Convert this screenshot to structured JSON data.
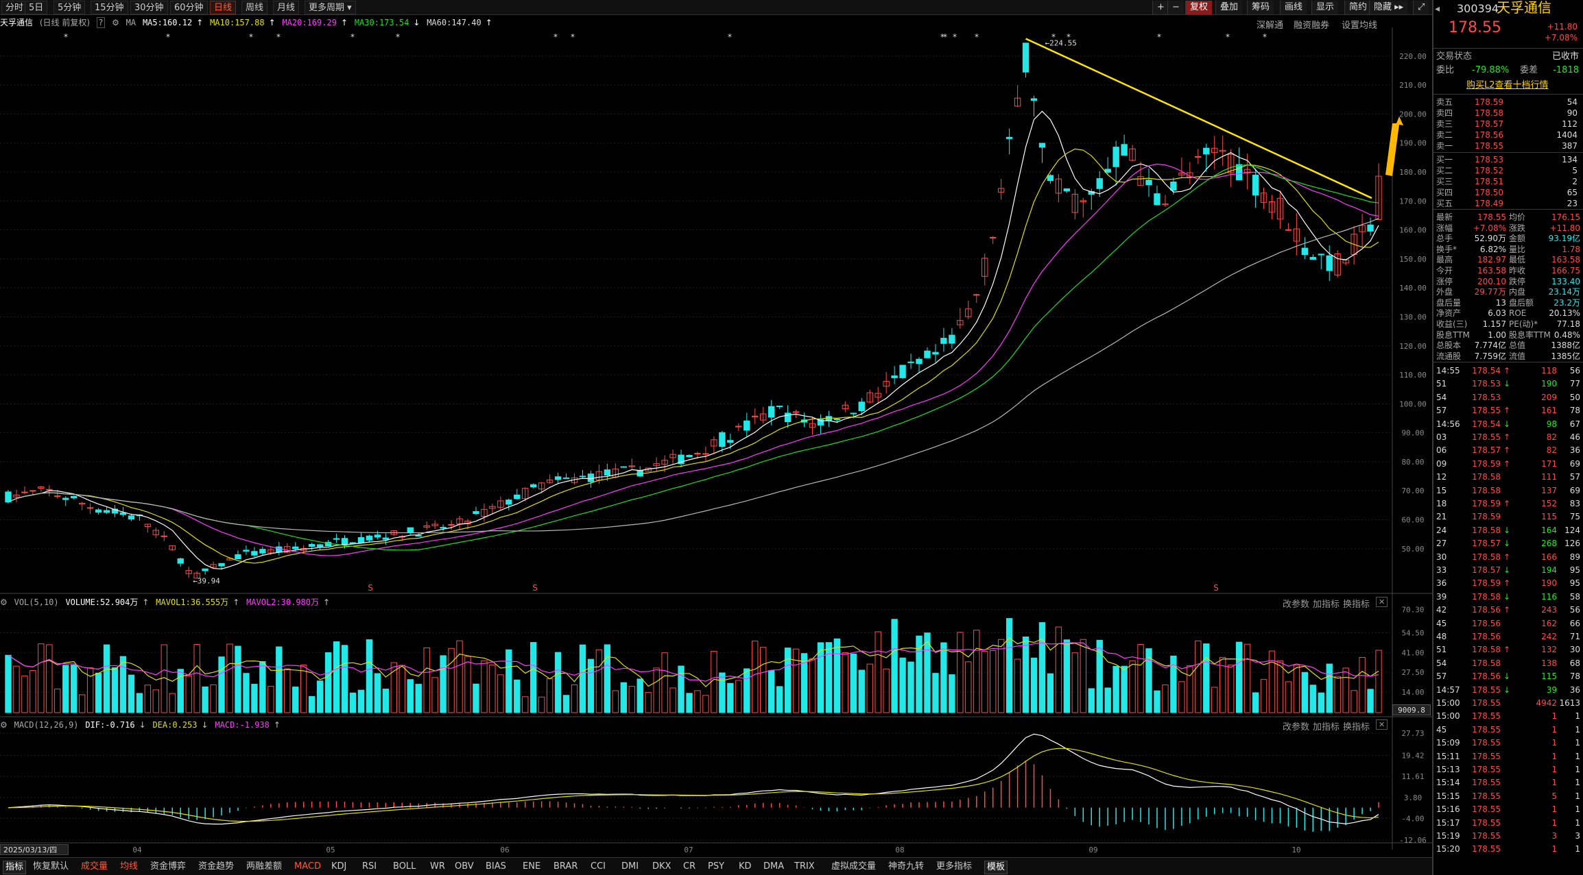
{
  "colors": {
    "up": "#ff4a4a",
    "down": "#22e8e8",
    "ma5": "#ffffff",
    "ma10": "#e0e000",
    "ma20": "#ff3bff",
    "ma30": "#22dd22",
    "ma60": "#b8b8b8",
    "trend": "#ffe600",
    "arrow": "#ffb800"
  },
  "toolbar": {
    "periods": [
      "分时",
      "5日",
      "5分钟",
      "15分钟",
      "30分钟",
      "60分钟",
      "日线",
      "周线",
      "月线",
      "更多周期"
    ],
    "active_period": "日线",
    "right_buttons": [
      "+",
      "−",
      "复权",
      "叠加",
      "筹码",
      "画线",
      "显示",
      "简约",
      "隐藏 ▸▸"
    ],
    "sub_links": [
      "深解通",
      "融资融券",
      "设置均线"
    ]
  },
  "stock": {
    "code": "300394",
    "name": "天孚通信",
    "price": "178.55",
    "change": "+11.80",
    "change_pct": "+7.08%"
  },
  "chart_info": {
    "title": "天孚通信",
    "subtitle": "(日线 前复权)",
    "ma_label": "MA",
    "ma5": "MA5:160.12",
    "ma10": "MA10:157.88",
    "ma20": "MA20:169.29",
    "ma30": "MA30:173.54",
    "ma60": "MA60:147.40"
  },
  "vol_info": {
    "label": "VOL(5,10)",
    "volume": "VOLUME:52.904万",
    "mavol1": "MAVOL1:36.555万",
    "mavol2": "MAVOL2:30.980万",
    "last": "9009.8"
  },
  "macd_info": {
    "label": "MACD(12,26,9)",
    "dif": "DIF:-0.716",
    "dea": "DEA:0.253",
    "macd": "MACD:-1.938"
  },
  "panel_links": [
    "改参数",
    "加指标",
    "换指标"
  ],
  "date_label": "2025/03/13/四",
  "annotations": {
    "high": "224.55",
    "low": "39.94"
  },
  "chart_data": {
    "type": "candlestick",
    "price_axis": {
      "ticks": [
        50,
        60,
        70,
        80,
        90,
        100,
        110,
        120,
        130,
        140,
        150,
        160,
        170,
        180,
        190,
        200,
        210,
        220
      ],
      "labels": [
        "50.00",
        "60.00",
        "70.00",
        "80.00",
        "90.00",
        "100.00",
        "110.00",
        "120.00",
        "130.00",
        "140.00",
        "150.00",
        "160.00",
        "170.00",
        "180.00",
        "190.00",
        "200.00",
        "210.00",
        "220.00"
      ]
    },
    "vol_axis": {
      "ticks": [
        14,
        27.5,
        41,
        54.5,
        70.3
      ],
      "labels": [
        "14.00",
        "27.50",
        "41.00",
        "54.50",
        "70.30"
      ]
    },
    "macd_axis": {
      "ticks": [
        -12.06,
        -4,
        3.8,
        11.61,
        19.42,
        27.73
      ],
      "labels": [
        "-12.06",
        "-4.00",
        "3.80",
        "11.61",
        "19.42",
        "27.73"
      ]
    },
    "months": [
      "04",
      "05",
      "06",
      "07",
      "08",
      "09",
      "10"
    ],
    "key_prices": {
      "start": 68,
      "low": 39.94,
      "high": 224.55,
      "last": 178.55
    }
  },
  "quote": {
    "status_label": "交易状态",
    "status": "已收市",
    "wb_label": "委比",
    "wb": "-79.88%",
    "wc_label": "委差",
    "wc": "-1818",
    "l2": "购买L2查看十档行情",
    "asks": [
      {
        "l": "卖五",
        "p": "178.59",
        "v": "54"
      },
      {
        "l": "卖四",
        "p": "178.58",
        "v": "90"
      },
      {
        "l": "卖三",
        "p": "178.57",
        "v": "112"
      },
      {
        "l": "卖二",
        "p": "178.56",
        "v": "1404"
      },
      {
        "l": "卖一",
        "p": "178.55",
        "v": "387"
      }
    ],
    "bids": [
      {
        "l": "买一",
        "p": "178.53",
        "v": "134"
      },
      {
        "l": "买二",
        "p": "178.52",
        "v": "5"
      },
      {
        "l": "买三",
        "p": "178.51",
        "v": "2"
      },
      {
        "l": "买四",
        "p": "178.50",
        "v": "65"
      },
      {
        "l": "买五",
        "p": "178.49",
        "v": "23"
      }
    ],
    "stats": [
      {
        "a": "最新",
        "av": "178.55",
        "b": "均价",
        "bv": "176.15"
      },
      {
        "a": "涨幅",
        "av": "+7.08%",
        "b": "涨跌",
        "bv": "+11.80"
      },
      {
        "a": "总手",
        "av": "52.90万",
        "b": "金额",
        "bv": "93.19亿"
      },
      {
        "a": "换手*",
        "av": "6.82%",
        "b": "量比",
        "bv": "1.78"
      },
      {
        "a": "最高",
        "av": "182.97",
        "b": "最低",
        "bv": "163.58"
      },
      {
        "a": "今开",
        "av": "163.58",
        "b": "昨收",
        "bv": "166.75"
      },
      {
        "a": "涨停",
        "av": "200.10",
        "b": "跌停",
        "bv": "133.40"
      },
      {
        "a": "外盘",
        "av": "29.77万",
        "b": "内盘",
        "bv": "23.14万"
      },
      {
        "a": "盘后量",
        "av": "13",
        "b": "盘后额",
        "bv": "23.2万"
      },
      {
        "a": "净资产",
        "av": "6.03",
        "b": "ROE",
        "bv": "20.13%"
      },
      {
        "a": "收益(三)",
        "av": "1.157",
        "b": "PE(动)*",
        "bv": "77.18"
      },
      {
        "a": "股息TTM",
        "av": "1.00",
        "b": "股息率TTM",
        "bv": "0.48%"
      },
      {
        "a": "总股本",
        "av": "7.774亿",
        "b": "总值",
        "bv": "1388亿"
      },
      {
        "a": "流通股",
        "av": "7.759亿",
        "b": "流值",
        "bv": "1385亿"
      }
    ],
    "ticks": [
      {
        "t": "14:55",
        "p": "178.54",
        "d": "up",
        "v": "118",
        "n": "56"
      },
      {
        "t": "51",
        "p": "178.53",
        "d": "down",
        "v": "190",
        "n": "77"
      },
      {
        "t": "54",
        "p": "178.53",
        "d": "",
        "v": "209",
        "n": "50"
      },
      {
        "t": "57",
        "p": "178.55",
        "d": "up",
        "v": "161",
        "n": "78"
      },
      {
        "t": "14:56",
        "p": "178.54",
        "d": "down",
        "v": "98",
        "n": "67"
      },
      {
        "t": "03",
        "p": "178.55",
        "d": "up",
        "v": "82",
        "n": "46"
      },
      {
        "t": "06",
        "p": "178.57",
        "d": "up",
        "v": "82",
        "n": "36"
      },
      {
        "t": "09",
        "p": "178.59",
        "d": "up",
        "v": "171",
        "n": "69"
      },
      {
        "t": "12",
        "p": "178.58",
        "d": "",
        "v": "111",
        "n": "57"
      },
      {
        "t": "15",
        "p": "178.58",
        "d": "",
        "v": "137",
        "n": "69"
      },
      {
        "t": "18",
        "p": "178.59",
        "d": "up",
        "v": "152",
        "n": "83"
      },
      {
        "t": "21",
        "p": "178.59",
        "d": "",
        "v": "115",
        "n": "75"
      },
      {
        "t": "24",
        "p": "178.58",
        "d": "down",
        "v": "164",
        "n": "124"
      },
      {
        "t": "27",
        "p": "178.57",
        "d": "down",
        "v": "268",
        "n": "126"
      },
      {
        "t": "30",
        "p": "178.58",
        "d": "up",
        "v": "166",
        "n": "89"
      },
      {
        "t": "33",
        "p": "178.57",
        "d": "down",
        "v": "194",
        "n": "95"
      },
      {
        "t": "36",
        "p": "178.59",
        "d": "up",
        "v": "190",
        "n": "95"
      },
      {
        "t": "39",
        "p": "178.58",
        "d": "down",
        "v": "116",
        "n": "58"
      },
      {
        "t": "42",
        "p": "178.56",
        "d": "up",
        "v": "243",
        "n": "56"
      },
      {
        "t": "45",
        "p": "178.56",
        "d": "",
        "v": "162",
        "n": "66"
      },
      {
        "t": "48",
        "p": "178.56",
        "d": "",
        "v": "242",
        "n": "71"
      },
      {
        "t": "51",
        "p": "178.58",
        "d": "up",
        "v": "132",
        "n": "30"
      },
      {
        "t": "54",
        "p": "178.58",
        "d": "",
        "v": "138",
        "n": "68"
      },
      {
        "t": "57",
        "p": "178.56",
        "d": "down",
        "v": "115",
        "n": "78"
      },
      {
        "t": "14:57",
        "p": "178.55",
        "d": "down",
        "v": "39",
        "n": "36"
      },
      {
        "t": "15:00",
        "p": "178.55",
        "d": "",
        "v": "4942",
        "n": "1613"
      },
      {
        "t": "15:00",
        "p": "178.55",
        "d": "",
        "v": "1",
        "n": "1"
      },
      {
        "t": "45",
        "p": "178.55",
        "d": "",
        "v": "1",
        "n": "1"
      },
      {
        "t": "15:09",
        "p": "178.55",
        "d": "",
        "v": "1",
        "n": "1"
      },
      {
        "t": "15:11",
        "p": "178.55",
        "d": "",
        "v": "1",
        "n": "1"
      },
      {
        "t": "15:13",
        "p": "178.55",
        "d": "",
        "v": "1",
        "n": "1"
      },
      {
        "t": "15:14",
        "p": "178.55",
        "d": "",
        "v": "1",
        "n": "1"
      },
      {
        "t": "15:15",
        "p": "178.55",
        "d": "",
        "v": "5",
        "n": "1"
      },
      {
        "t": "15:16",
        "p": "178.55",
        "d": "",
        "v": "1",
        "n": "1"
      },
      {
        "t": "15:17",
        "p": "178.55",
        "d": "",
        "v": "1",
        "n": "1"
      },
      {
        "t": "15:19",
        "p": "178.55",
        "d": "",
        "v": "3",
        "n": "3"
      },
      {
        "t": "15:20",
        "p": "178.55",
        "d": "",
        "v": "1",
        "n": "1"
      }
    ]
  },
  "bottom_tabs": [
    "指标",
    "恢复默认",
    "成交量",
    "均线",
    "资金博弈",
    "资金趋势",
    "两融差额",
    "MACD",
    "KDJ",
    "RSI",
    "BOLL",
    "WR",
    "OBV",
    "BIAS",
    "ENE",
    "BRAR",
    "CCI",
    "DMI",
    "DKX",
    "CR",
    "PSY",
    "KD",
    "DMA",
    "TRIX",
    "虚拟成交量",
    "神奇九转",
    "更多指标",
    "模板"
  ],
  "bottom_active": [
    "成交量",
    "均线",
    "MACD"
  ]
}
